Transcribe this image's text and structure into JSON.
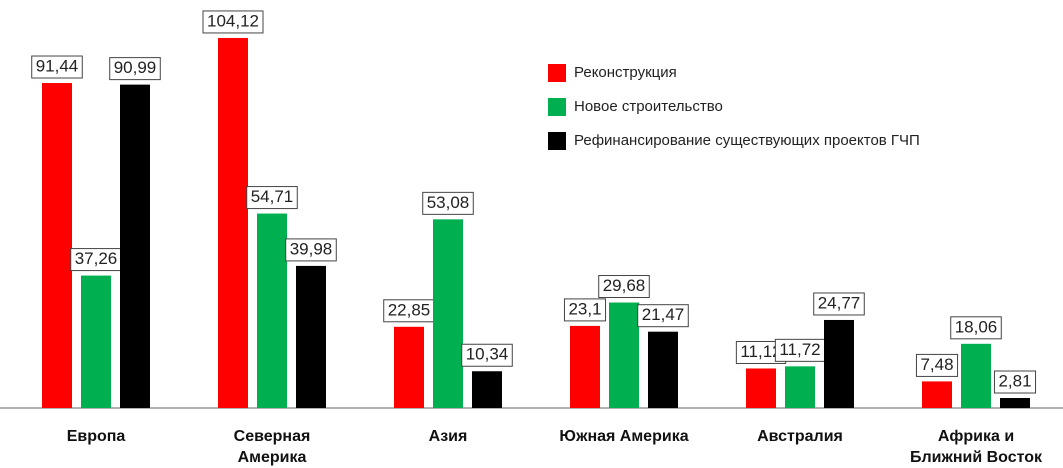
{
  "chart_data": {
    "type": "bar",
    "categories": [
      "Европа",
      "Северная\nАмерика",
      "Азия",
      "Южная Америка",
      "Австралия",
      "Африка и\nБлижний Восток"
    ],
    "series": [
      {
        "name": "Реконструкция",
        "color": "#ff0000",
        "values": [
          91.44,
          104.12,
          22.85,
          23.1,
          11.12,
          7.48
        ],
        "value_labels": [
          "91,44",
          "104,12",
          "22,85",
          "23,1",
          "11,12",
          "7,48"
        ]
      },
      {
        "name": "Новое строительство",
        "color": "#00b050",
        "values": [
          37.26,
          54.71,
          53.08,
          29.68,
          11.72,
          18.06
        ],
        "value_labels": [
          "37,26",
          "54,71",
          "53,08",
          "29,68",
          "11,72",
          "18,06"
        ]
      },
      {
        "name": "Рефинансирование существующих проектов ГЧП",
        "color": "#000000",
        "values": [
          90.99,
          39.98,
          10.34,
          21.47,
          24.77,
          2.81
        ],
        "value_labels": [
          "90,99",
          "39,98",
          "10,34",
          "21,47",
          "24,77",
          "2,81"
        ]
      }
    ],
    "legend": "top-right"
  }
}
